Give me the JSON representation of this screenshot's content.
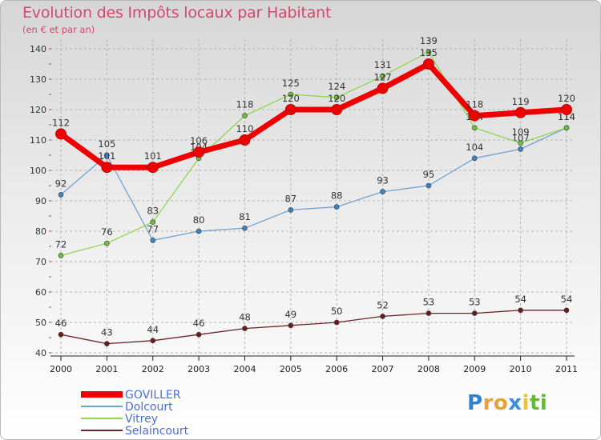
{
  "header": {
    "title": "Evolution des Impôts locaux par Habitant",
    "subtitle": "(en € et par an)"
  },
  "chart_data": {
    "type": "line",
    "title": "Evolution des Impôts locaux par Habitant",
    "subtitle": "(en € et par an)",
    "xlabel": "",
    "ylabel": "",
    "categories": [
      "2000",
      "2001",
      "2002",
      "2003",
      "2004",
      "2005",
      "2006",
      "2007",
      "2008",
      "2009",
      "2010",
      "2011"
    ],
    "ylim": [
      40,
      140
    ],
    "yticks": [
      40,
      50,
      60,
      70,
      80,
      90,
      100,
      110,
      120,
      130,
      140
    ],
    "grid": "horizontal dashed",
    "legend_position": "bottom-left",
    "series": [
      {
        "name": "GOVILLER",
        "color": "#ee0000",
        "marker": "#b01010",
        "weight": "thick",
        "values": [
          112,
          101,
          101,
          106,
          110,
          120,
          120,
          127,
          135,
          118,
          119,
          120
        ]
      },
      {
        "name": "Dolcourt",
        "color": "#6fa2d0",
        "marker": "#3a87c8",
        "weight": "thin",
        "values": [
          92,
          105,
          77,
          80,
          81,
          87,
          88,
          93,
          95,
          104,
          107,
          114
        ]
      },
      {
        "name": "Vitrey",
        "color": "#8fd650",
        "marker": "#6cc23a",
        "weight": "thin",
        "values": [
          72,
          76,
          83,
          104,
          118,
          125,
          124,
          131,
          139,
          114,
          109,
          114
        ]
      },
      {
        "name": "Selaincourt",
        "color": "#6b2626",
        "marker": "#6b1d1d",
        "weight": "thin",
        "values": [
          46,
          43,
          44,
          46,
          48,
          49,
          50,
          52,
          53,
          53,
          54,
          54
        ]
      }
    ]
  },
  "logo": {
    "letters": [
      "P",
      "r",
      "o",
      "x",
      "i",
      "t",
      "i"
    ],
    "colors": [
      "#2f80d0",
      "#e8a23a",
      "#e8a23a",
      "#3a8fd8",
      "#f0c030",
      "#66b83a",
      "#66b83a"
    ]
  }
}
